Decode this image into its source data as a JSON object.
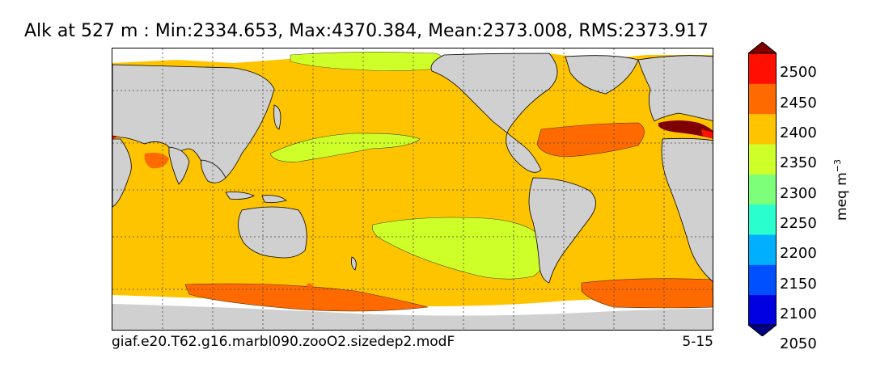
{
  "title": "Alk at 527 m : Min:2334.653, Max:4370.384, Mean:2373.008, RMS:2373.917",
  "footer": {
    "case_name": "giaf.e20.T62.g16.marbl090.zooO2.sizedep2.modF",
    "years": "5-15"
  },
  "colorbar": {
    "unit_base": "meq m",
    "unit_exp": "−3",
    "tick_labels": [
      "2500",
      "2450",
      "2400",
      "2350",
      "2300",
      "2250",
      "2200",
      "2150",
      "2100",
      "2050"
    ],
    "bands": [
      {
        "range": "<2050",
        "color": "#00007f"
      },
      {
        "range": "2050-2100",
        "color": "#0000e0"
      },
      {
        "range": "2100-2150",
        "color": "#0050ff"
      },
      {
        "range": "2150-2200",
        "color": "#00b0ff"
      },
      {
        "range": "2200-2250",
        "color": "#29ffce"
      },
      {
        "range": "2250-2300",
        "color": "#7dff7a"
      },
      {
        "range": "2300-2350",
        "color": "#ceff29"
      },
      {
        "range": "2350-2400",
        "color": "#ffc400"
      },
      {
        "range": "2400-2450",
        "color": "#ff6a00"
      },
      {
        "range": "2450-2500",
        "color": "#ff1000"
      },
      {
        "range": ">2500",
        "color": "#7f0000"
      }
    ],
    "extend_color": "#000000"
  },
  "map_colors": {
    "land": "#d0d0d0",
    "ocean_default": "#ffc400",
    "low_alkalinity": "#ceff29",
    "high_alkalinity": "#ff6a00",
    "very_high_alkalinity": "#ff1000",
    "mediterranean": "#7f0000",
    "missing": "#ffffff"
  }
}
